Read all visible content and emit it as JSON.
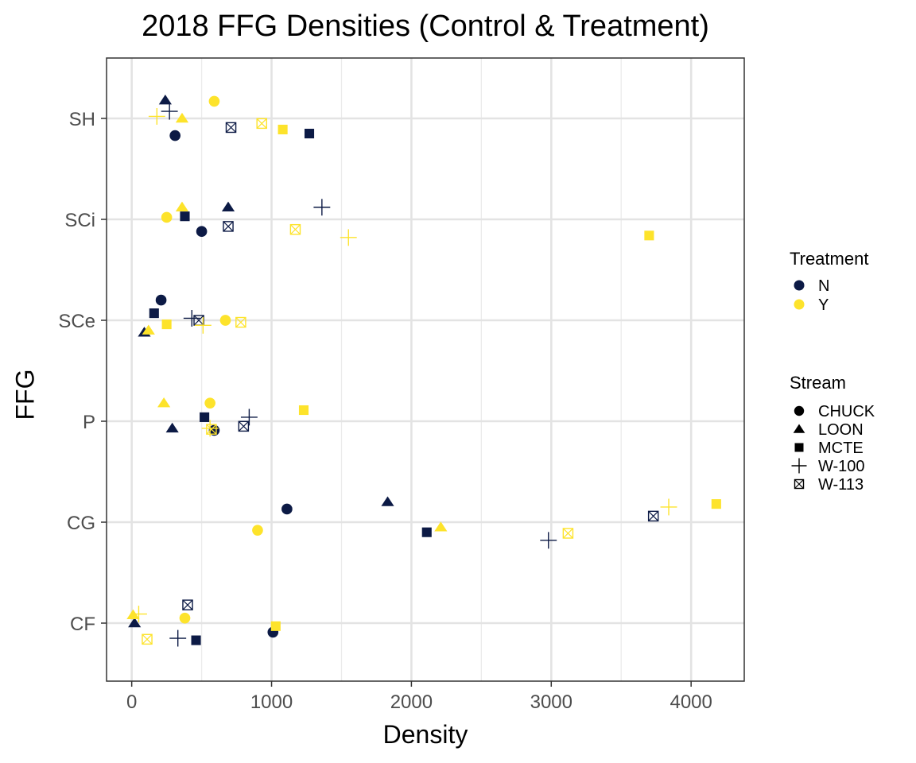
{
  "chart_data": {
    "type": "scatter",
    "title": "2018 FFG Densities (Control & Treatment)",
    "xlabel": "Density",
    "ylabel": "FFG",
    "xlim": [
      -180,
      4380
    ],
    "x_ticks": [
      0,
      1000,
      2000,
      3000,
      4000
    ],
    "categories": [
      "CF",
      "CG",
      "P",
      "SCe",
      "SCi",
      "SH"
    ],
    "grid": true,
    "legend_position": "right",
    "treatment_legend": {
      "title": "Treatment",
      "items": [
        {
          "label": "N",
          "color": "#0c1a45"
        },
        {
          "label": "Y",
          "color": "#fde32b"
        }
      ]
    },
    "stream_legend": {
      "title": "Stream",
      "items": [
        {
          "label": "CHUCK",
          "shape": "circle"
        },
        {
          "label": "LOON",
          "shape": "triangle"
        },
        {
          "label": "MCTE",
          "shape": "square"
        },
        {
          "label": "W-100",
          "shape": "plus"
        },
        {
          "label": "W-113",
          "shape": "boxx"
        }
      ]
    },
    "points": [
      {
        "ffg": "SH",
        "stream": "CHUCK",
        "treatment": "N",
        "x": 310,
        "jitter": -0.17
      },
      {
        "ffg": "SH",
        "stream": "LOON",
        "treatment": "N",
        "x": 240,
        "jitter": 0.18
      },
      {
        "ffg": "SH",
        "stream": "MCTE",
        "treatment": "N",
        "x": 1270,
        "jitter": -0.15
      },
      {
        "ffg": "SH",
        "stream": "W-100",
        "treatment": "N",
        "x": 270,
        "jitter": 0.07
      },
      {
        "ffg": "SH",
        "stream": "W-113",
        "treatment": "N",
        "x": 710,
        "jitter": -0.09
      },
      {
        "ffg": "SH",
        "stream": "CHUCK",
        "treatment": "Y",
        "x": 590,
        "jitter": 0.17
      },
      {
        "ffg": "SH",
        "stream": "LOON",
        "treatment": "Y",
        "x": 360,
        "jitter": 0.0
      },
      {
        "ffg": "SH",
        "stream": "MCTE",
        "treatment": "Y",
        "x": 1080,
        "jitter": -0.11
      },
      {
        "ffg": "SH",
        "stream": "W-100",
        "treatment": "Y",
        "x": 180,
        "jitter": 0.02
      },
      {
        "ffg": "SH",
        "stream": "W-113",
        "treatment": "Y",
        "x": 930,
        "jitter": -0.05
      },
      {
        "ffg": "SCi",
        "stream": "CHUCK",
        "treatment": "N",
        "x": 500,
        "jitter": -0.12
      },
      {
        "ffg": "SCi",
        "stream": "LOON",
        "treatment": "N",
        "x": 690,
        "jitter": 0.12
      },
      {
        "ffg": "SCi",
        "stream": "MCTE",
        "treatment": "N",
        "x": 380,
        "jitter": 0.03
      },
      {
        "ffg": "SCi",
        "stream": "W-100",
        "treatment": "N",
        "x": 1360,
        "jitter": 0.12
      },
      {
        "ffg": "SCi",
        "stream": "W-113",
        "treatment": "N",
        "x": 690,
        "jitter": -0.07
      },
      {
        "ffg": "SCi",
        "stream": "CHUCK",
        "treatment": "Y",
        "x": 250,
        "jitter": 0.02
      },
      {
        "ffg": "SCi",
        "stream": "LOON",
        "treatment": "Y",
        "x": 360,
        "jitter": 0.12
      },
      {
        "ffg": "SCi",
        "stream": "MCTE",
        "treatment": "Y",
        "x": 3700,
        "jitter": -0.16
      },
      {
        "ffg": "SCi",
        "stream": "W-100",
        "treatment": "Y",
        "x": 1550,
        "jitter": -0.18
      },
      {
        "ffg": "SCi",
        "stream": "W-113",
        "treatment": "Y",
        "x": 1170,
        "jitter": -0.1
      },
      {
        "ffg": "SCe",
        "stream": "CHUCK",
        "treatment": "N",
        "x": 210,
        "jitter": 0.2
      },
      {
        "ffg": "SCe",
        "stream": "LOON",
        "treatment": "N",
        "x": 90,
        "jitter": -0.12
      },
      {
        "ffg": "SCe",
        "stream": "MCTE",
        "treatment": "N",
        "x": 160,
        "jitter": 0.07
      },
      {
        "ffg": "SCe",
        "stream": "W-100",
        "treatment": "N",
        "x": 430,
        "jitter": 0.02
      },
      {
        "ffg": "SCe",
        "stream": "W-113",
        "treatment": "N",
        "x": 480,
        "jitter": 0.0
      },
      {
        "ffg": "SCe",
        "stream": "CHUCK",
        "treatment": "Y",
        "x": 670,
        "jitter": 0.0
      },
      {
        "ffg": "SCe",
        "stream": "LOON",
        "treatment": "Y",
        "x": 120,
        "jitter": -0.1
      },
      {
        "ffg": "SCe",
        "stream": "MCTE",
        "treatment": "Y",
        "x": 250,
        "jitter": -0.04
      },
      {
        "ffg": "SCe",
        "stream": "W-100",
        "treatment": "Y",
        "x": 510,
        "jitter": -0.05
      },
      {
        "ffg": "SCe",
        "stream": "W-113",
        "treatment": "Y",
        "x": 780,
        "jitter": -0.02
      },
      {
        "ffg": "P",
        "stream": "CHUCK",
        "treatment": "N",
        "x": 590,
        "jitter": -0.09
      },
      {
        "ffg": "P",
        "stream": "LOON",
        "treatment": "N",
        "x": 290,
        "jitter": -0.07
      },
      {
        "ffg": "P",
        "stream": "MCTE",
        "treatment": "N",
        "x": 520,
        "jitter": 0.04
      },
      {
        "ffg": "P",
        "stream": "W-100",
        "treatment": "N",
        "x": 840,
        "jitter": 0.04
      },
      {
        "ffg": "P",
        "stream": "W-113",
        "treatment": "N",
        "x": 800,
        "jitter": -0.05
      },
      {
        "ffg": "P",
        "stream": "CHUCK",
        "treatment": "Y",
        "x": 560,
        "jitter": 0.18
      },
      {
        "ffg": "P",
        "stream": "LOON",
        "treatment": "Y",
        "x": 230,
        "jitter": 0.18
      },
      {
        "ffg": "P",
        "stream": "MCTE",
        "treatment": "Y",
        "x": 1230,
        "jitter": 0.11
      },
      {
        "ffg": "P",
        "stream": "W-100",
        "treatment": "Y",
        "x": 560,
        "jitter": -0.07
      },
      {
        "ffg": "P",
        "stream": "W-113",
        "treatment": "Y",
        "x": 570,
        "jitter": -0.08
      },
      {
        "ffg": "CG",
        "stream": "CHUCK",
        "treatment": "N",
        "x": 1110,
        "jitter": 0.13
      },
      {
        "ffg": "CG",
        "stream": "LOON",
        "treatment": "N",
        "x": 1830,
        "jitter": 0.2
      },
      {
        "ffg": "CG",
        "stream": "MCTE",
        "treatment": "N",
        "x": 2110,
        "jitter": -0.1
      },
      {
        "ffg": "CG",
        "stream": "W-100",
        "treatment": "N",
        "x": 2980,
        "jitter": -0.18
      },
      {
        "ffg": "CG",
        "stream": "W-113",
        "treatment": "N",
        "x": 3730,
        "jitter": 0.06
      },
      {
        "ffg": "CG",
        "stream": "CHUCK",
        "treatment": "Y",
        "x": 900,
        "jitter": -0.08
      },
      {
        "ffg": "CG",
        "stream": "LOON",
        "treatment": "Y",
        "x": 2210,
        "jitter": -0.05
      },
      {
        "ffg": "CG",
        "stream": "MCTE",
        "treatment": "Y",
        "x": 4180,
        "jitter": 0.18
      },
      {
        "ffg": "CG",
        "stream": "W-100",
        "treatment": "Y",
        "x": 3840,
        "jitter": 0.15
      },
      {
        "ffg": "CG",
        "stream": "W-113",
        "treatment": "Y",
        "x": 3120,
        "jitter": -0.11
      },
      {
        "ffg": "CF",
        "stream": "CHUCK",
        "treatment": "N",
        "x": 1010,
        "jitter": -0.09
      },
      {
        "ffg": "CF",
        "stream": "LOON",
        "treatment": "N",
        "x": 20,
        "jitter": 0.0
      },
      {
        "ffg": "CF",
        "stream": "MCTE",
        "treatment": "N",
        "x": 460,
        "jitter": -0.17
      },
      {
        "ffg": "CF",
        "stream": "W-100",
        "treatment": "N",
        "x": 330,
        "jitter": -0.15
      },
      {
        "ffg": "CF",
        "stream": "W-113",
        "treatment": "N",
        "x": 400,
        "jitter": 0.18
      },
      {
        "ffg": "CF",
        "stream": "CHUCK",
        "treatment": "Y",
        "x": 380,
        "jitter": 0.05
      },
      {
        "ffg": "CF",
        "stream": "LOON",
        "treatment": "Y",
        "x": 10,
        "jitter": 0.08
      },
      {
        "ffg": "CF",
        "stream": "MCTE",
        "treatment": "Y",
        "x": 1030,
        "jitter": -0.03
      },
      {
        "ffg": "CF",
        "stream": "W-100",
        "treatment": "Y",
        "x": 50,
        "jitter": 0.09
      },
      {
        "ffg": "CF",
        "stream": "W-113",
        "treatment": "Y",
        "x": 110,
        "jitter": -0.16
      }
    ]
  }
}
